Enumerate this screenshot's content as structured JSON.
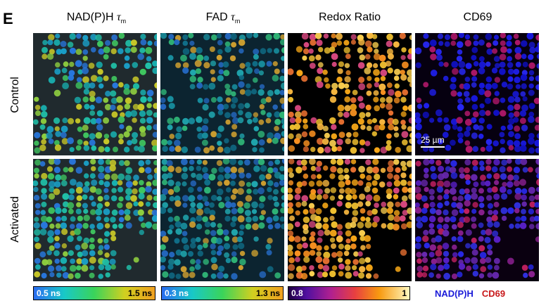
{
  "panel_letter": "E",
  "columns": [
    {
      "title_main": "NAD(P)H ",
      "title_tau": "τ",
      "title_sub": "m"
    },
    {
      "title_main": "FAD ",
      "title_tau": "τ",
      "title_sub": "m"
    },
    {
      "title_main": "Redox Ratio",
      "title_tau": "",
      "title_sub": ""
    },
    {
      "title_main": "CD69",
      "title_tau": "",
      "title_sub": ""
    }
  ],
  "rows": [
    {
      "label": "Control"
    },
    {
      "label": "Activated"
    }
  ],
  "scale_bar": "25 µm",
  "colorbars": [
    {
      "min": "0.5 ns",
      "max": "1.5 ns"
    },
    {
      "min": "0.3 ns",
      "max": "1.3 ns"
    },
    {
      "min": "0.8",
      "max": "1"
    }
  ],
  "legend": {
    "nadph": "NAD(P)H",
    "cd69": "CD69"
  },
  "colors": {
    "nadph": "#1a1ad8",
    "cd69": "#c8181a"
  }
}
